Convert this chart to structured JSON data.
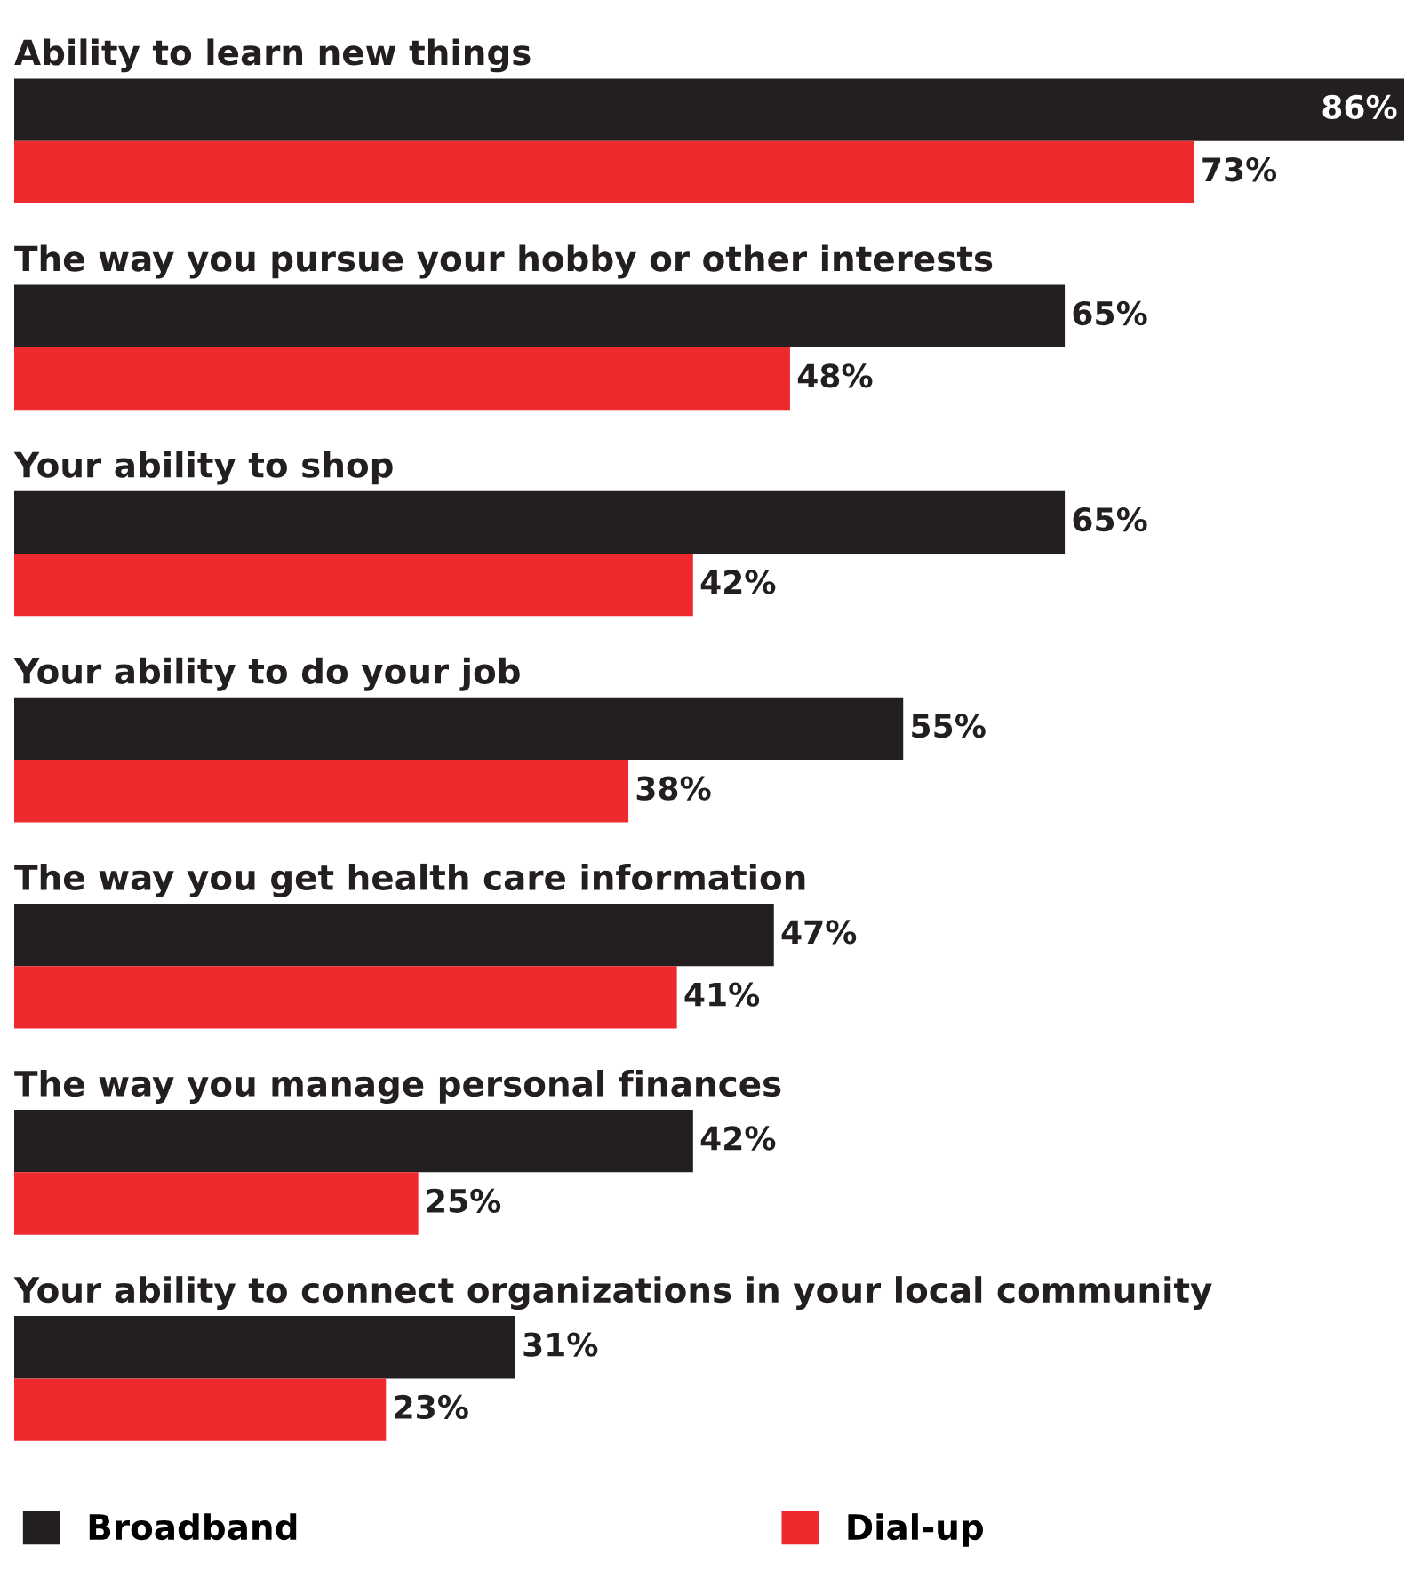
{
  "chart_data": {
    "type": "bar",
    "orientation": "horizontal",
    "categories": [
      "Ability to learn new things",
      "The way you pursue your hobby or other interests",
      "Your ability to shop",
      "Your ability to do your job",
      "The way you get health care information",
      "The way you manage personal finances",
      "Your ability to connect organizations in your local community"
    ],
    "series": [
      {
        "name": "Broadband",
        "color": "#231f20",
        "values": [
          86,
          65,
          65,
          55,
          47,
          42,
          31
        ],
        "value_labels": [
          "86%",
          "65%",
          "65%",
          "55%",
          "47%",
          "42%",
          "31%"
        ]
      },
      {
        "name": "Dial-up",
        "color": "#ee2a2e",
        "values": [
          73,
          48,
          42,
          38,
          41,
          25,
          23
        ],
        "value_labels": [
          "73%",
          "48%",
          "42%",
          "38%",
          "41%",
          "25%",
          "23%"
        ]
      }
    ],
    "legend": "bottom"
  }
}
